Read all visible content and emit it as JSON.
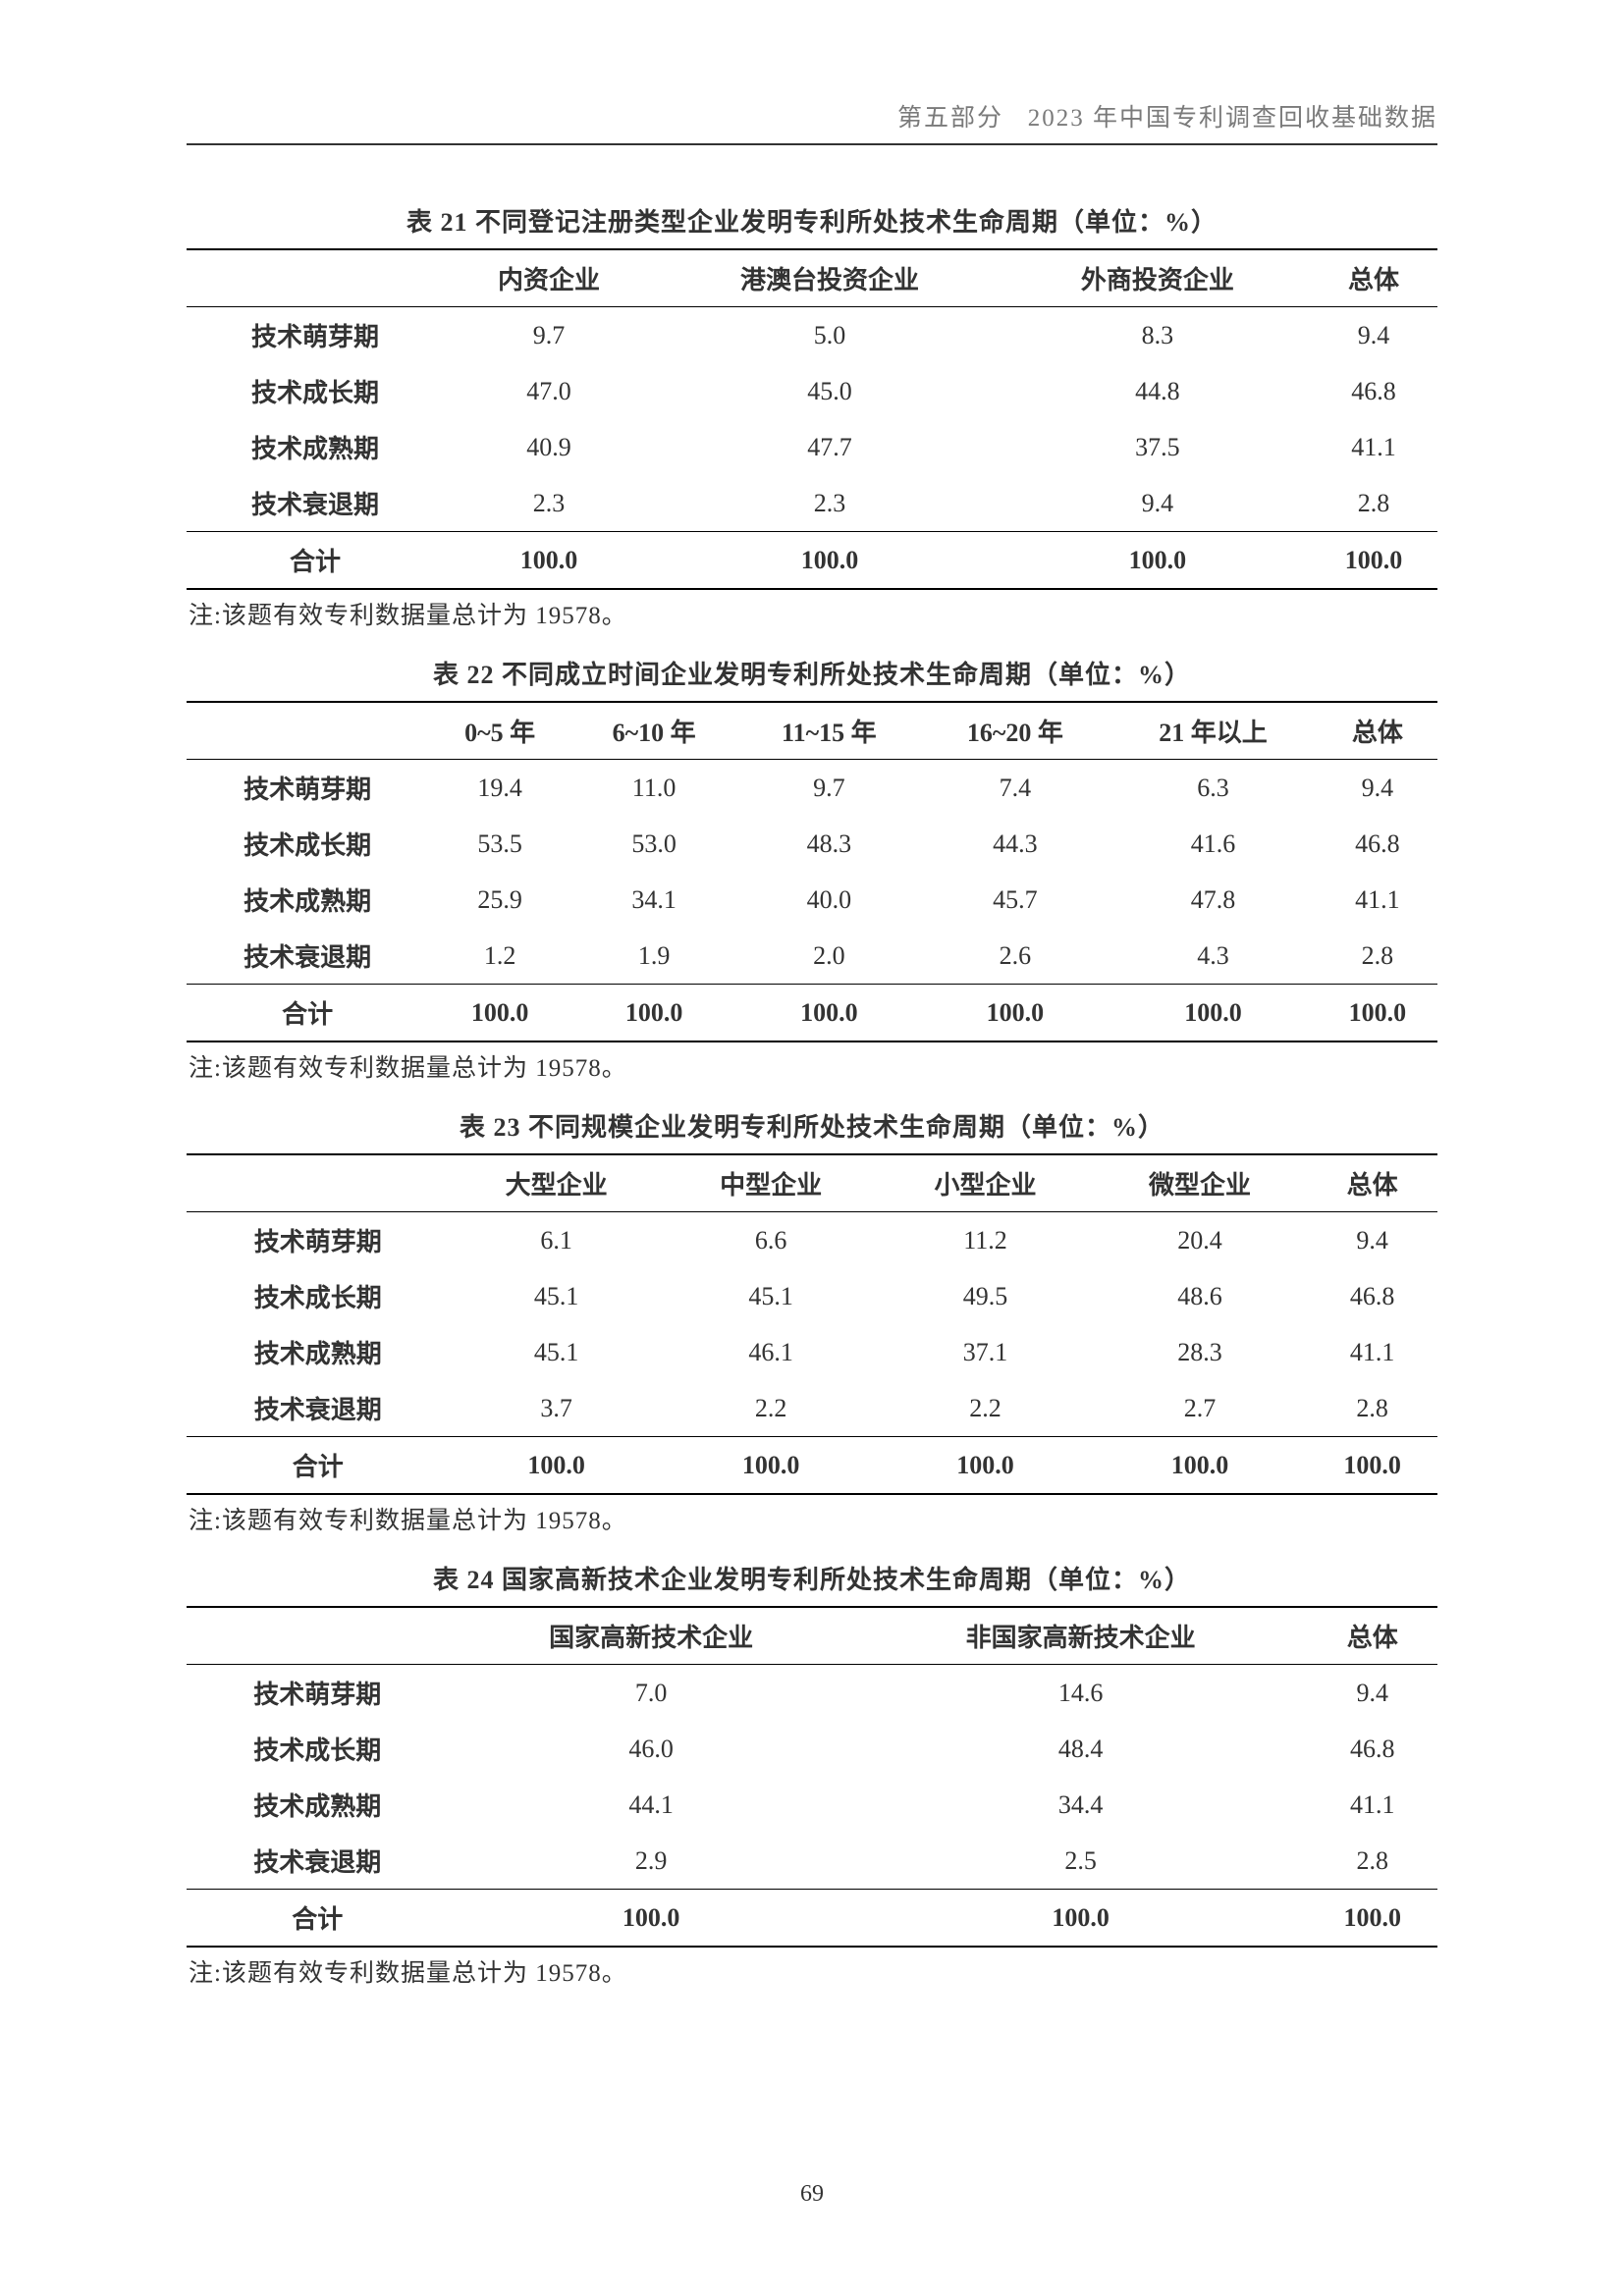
{
  "header": {
    "section": "第五部分",
    "title": "2023 年中国专利调查回收基础数据"
  },
  "page_number": "69",
  "row_labels": [
    "技术萌芽期",
    "技术成长期",
    "技术成熟期",
    "技术衰退期",
    "合计"
  ],
  "note_text": "注:该题有效专利数据量总计为 19578。",
  "tables": {
    "t21": {
      "title": "表 21  不同登记注册类型企业发明专利所处技术生命周期（单位：%）",
      "columns": [
        "",
        "内资企业",
        "港澳台投资企业",
        "外商投资企业",
        "总体"
      ],
      "rows": [
        [
          "9.7",
          "5.0",
          "8.3",
          "9.4"
        ],
        [
          "47.0",
          "45.0",
          "44.8",
          "46.8"
        ],
        [
          "40.9",
          "47.7",
          "37.5",
          "41.1"
        ],
        [
          "2.3",
          "2.3",
          "9.4",
          "2.8"
        ],
        [
          "100.0",
          "100.0",
          "100.0",
          "100.0"
        ]
      ]
    },
    "t22": {
      "title": "表 22  不同成立时间企业发明专利所处技术生命周期（单位：%）",
      "columns": [
        "",
        "0~5 年",
        "6~10 年",
        "11~15 年",
        "16~20 年",
        "21 年以上",
        "总体"
      ],
      "rows": [
        [
          "19.4",
          "11.0",
          "9.7",
          "7.4",
          "6.3",
          "9.4"
        ],
        [
          "53.5",
          "53.0",
          "48.3",
          "44.3",
          "41.6",
          "46.8"
        ],
        [
          "25.9",
          "34.1",
          "40.0",
          "45.7",
          "47.8",
          "41.1"
        ],
        [
          "1.2",
          "1.9",
          "2.0",
          "2.6",
          "4.3",
          "2.8"
        ],
        [
          "100.0",
          "100.0",
          "100.0",
          "100.0",
          "100.0",
          "100.0"
        ]
      ]
    },
    "t23": {
      "title": "表 23  不同规模企业发明专利所处技术生命周期（单位：%）",
      "columns": [
        "",
        "大型企业",
        "中型企业",
        "小型企业",
        "微型企业",
        "总体"
      ],
      "rows": [
        [
          "6.1",
          "6.6",
          "11.2",
          "20.4",
          "9.4"
        ],
        [
          "45.1",
          "45.1",
          "49.5",
          "48.6",
          "46.8"
        ],
        [
          "45.1",
          "46.1",
          "37.1",
          "28.3",
          "41.1"
        ],
        [
          "3.7",
          "2.2",
          "2.2",
          "2.7",
          "2.8"
        ],
        [
          "100.0",
          "100.0",
          "100.0",
          "100.0",
          "100.0"
        ]
      ]
    },
    "t24": {
      "title": "表 24  国家高新技术企业发明专利所处技术生命周期（单位：%）",
      "columns": [
        "",
        "国家高新技术企业",
        "非国家高新技术企业",
        "总体"
      ],
      "rows": [
        [
          "7.0",
          "14.6",
          "9.4"
        ],
        [
          "46.0",
          "48.4",
          "46.8"
        ],
        [
          "44.1",
          "34.4",
          "41.1"
        ],
        [
          "2.9",
          "2.5",
          "2.8"
        ],
        [
          "100.0",
          "100.0",
          "100.0"
        ]
      ]
    }
  }
}
